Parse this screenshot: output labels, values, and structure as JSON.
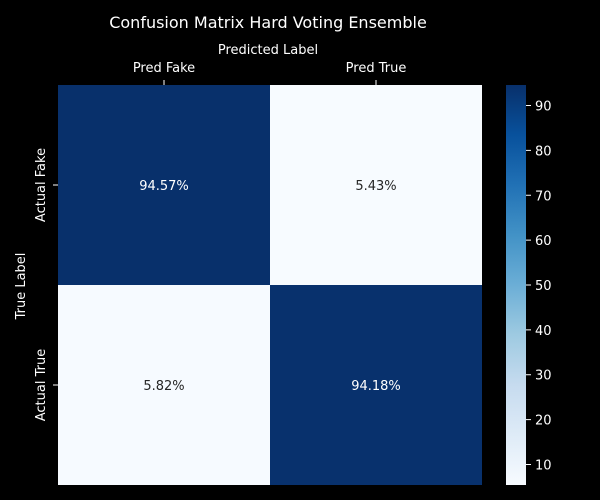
{
  "chart_data": {
    "type": "heatmap",
    "title": "Confusion Matrix Hard Voting Ensemble",
    "xlabel": "Predicted Label",
    "ylabel": "True Label",
    "x_categories": [
      "Pred Fake",
      "Pred True"
    ],
    "y_categories": [
      "Actual Fake",
      "Actual True"
    ],
    "values": [
      [
        94.57,
        5.43
      ],
      [
        5.82,
        94.18
      ]
    ],
    "cell_labels": [
      [
        "94.57%",
        "5.43%"
      ],
      [
        "5.82%",
        "94.18%"
      ]
    ],
    "colormap": "Blues",
    "colorbar": {
      "range": [
        5.43,
        94.57
      ],
      "ticks": [
        10,
        20,
        30,
        40,
        50,
        60,
        70,
        80,
        90
      ]
    },
    "x_tick_position": "top",
    "grid": false
  }
}
